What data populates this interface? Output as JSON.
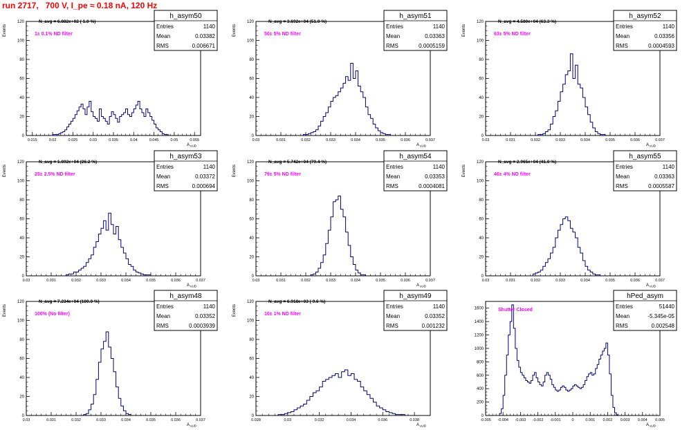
{
  "page_title": "run 2717,   700 V, I_pe ≈ 0.18 nA, 120 Hz",
  "colors": {
    "frame": "#000000",
    "histogram": "#000080",
    "annotation": "#ff00ff",
    "title": "#ff0000"
  },
  "stats_labels": {
    "entries": "Entries",
    "mean": "Mean",
    "rms": "RMS"
  },
  "chart_data": [
    {
      "type": "histogram",
      "name": "h_asym50",
      "ylabel": "Events",
      "xlabel": "A",
      "xlabel_sub": "uUD",
      "xlim": [
        0.0135,
        0.0565
      ],
      "ylim": [
        0,
        120
      ],
      "xticks": [
        "0.015",
        "0.02",
        "0.025",
        "0.03",
        "0.035",
        "0.04",
        "0.045",
        "0.05",
        "0.055"
      ],
      "xtick_values": [
        0.015,
        0.02,
        0.025,
        0.03,
        0.035,
        0.04,
        0.045,
        0.05,
        0.055
      ],
      "yticks": [
        0,
        20,
        40,
        60,
        80,
        100,
        120
      ],
      "navg": "N_avg = 6.882e+02 ( 1.0 %)",
      "filter": "1± 0.1% ND filter",
      "entries": "1140",
      "mean": "0.03382",
      "rms": "0.006671",
      "bins": {
        "x0": 0.0195,
        "width": 0.0005,
        "counts": [
          0,
          1,
          1,
          1,
          2,
          3,
          4,
          6,
          9,
          12,
          15,
          18,
          22,
          26,
          30,
          33,
          28,
          22,
          30,
          36,
          25,
          20,
          18,
          15,
          28,
          20,
          18,
          15,
          12,
          20,
          25,
          22,
          18,
          14,
          20,
          22,
          24,
          28,
          22,
          20,
          24,
          28,
          32,
          36,
          28,
          24,
          20,
          28,
          24,
          20,
          16,
          12,
          8,
          6,
          4,
          2,
          1,
          1
        ]
      }
    },
    {
      "type": "histogram",
      "name": "h_asym51",
      "ylabel": "Events",
      "xlabel": "A",
      "xlabel_sub": "uUD",
      "xlim": [
        0.03,
        0.037
      ],
      "ylim": [
        0,
        120
      ],
      "xticks": [
        "0.03",
        "0.031",
        "0.032",
        "0.033",
        "0.034",
        "0.035",
        "0.036",
        "0.037"
      ],
      "xtick_values": [
        0.03,
        0.031,
        0.032,
        0.033,
        0.034,
        0.035,
        0.036,
        0.037
      ],
      "yticks": [
        0,
        20,
        40,
        60,
        80,
        100,
        120
      ],
      "navg": "N_avg = 3.692e+04 (51.0 %)",
      "filter": "50± 5% ND filter",
      "entries": "1140",
      "mean": "0.03363",
      "rms": "0.0005159",
      "bins": {
        "x0": 0.0319,
        "width": 0.0001,
        "counts": [
          1,
          1,
          2,
          3,
          4,
          6,
          10,
          15,
          20,
          24,
          30,
          36,
          40,
          42,
          46,
          50,
          55,
          62,
          58,
          76,
          60,
          68,
          52,
          46,
          40,
          30,
          22,
          18,
          12,
          8,
          5,
          3,
          2,
          1,
          1
        ]
      }
    },
    {
      "type": "histogram",
      "name": "h_asym52",
      "ylabel": "Events",
      "xlabel": "A",
      "xlabel_sub": "uUD",
      "xlim": [
        0.03,
        0.037
      ],
      "ylim": [
        0,
        120
      ],
      "xticks": [
        "0.03",
        "0.031",
        "0.032",
        "0.033",
        "0.034",
        "0.035",
        "0.036",
        "0.037"
      ],
      "xtick_values": [
        0.03,
        0.031,
        0.032,
        0.033,
        0.034,
        0.035,
        0.036,
        0.037
      ],
      "yticks": [
        0,
        20,
        40,
        60,
        80,
        100,
        120
      ],
      "navg": "N_avg = 4.580e+04 (63.3 %)",
      "filter": "63± 5% ND filter",
      "entries": "1140",
      "mean": "0.03356",
      "rms": "0.0004593",
      "bins": {
        "x0": 0.0321,
        "width": 0.0001,
        "counts": [
          1,
          1,
          2,
          4,
          6,
          12,
          20,
          26,
          36,
          46,
          54,
          64,
          68,
          86,
          60,
          74,
          54,
          50,
          40,
          30,
          22,
          14,
          8,
          4,
          2,
          1,
          1
        ]
      }
    },
    {
      "type": "histogram",
      "name": "h_asym53",
      "ylabel": "Events",
      "xlabel": "A",
      "xlabel_sub": "uUD",
      "xlim": [
        0.03,
        0.037
      ],
      "ylim": [
        0,
        120
      ],
      "xticks": [
        "0.03",
        "0.031",
        "0.032",
        "0.033",
        "0.034",
        "0.035",
        "0.036",
        "0.037"
      ],
      "xtick_values": [
        0.03,
        0.031,
        0.032,
        0.033,
        0.034,
        0.035,
        0.036,
        0.037
      ],
      "yticks": [
        0,
        20,
        40,
        60,
        80,
        100,
        120
      ],
      "navg": "N_avg = 1.892e+04 (26.2 %)",
      "filter": "25± 2.5% ND filter",
      "entries": "1140",
      "mean": "0.03372",
      "rms": "0.000694",
      "bins": {
        "x0": 0.0316,
        "width": 0.0001,
        "counts": [
          1,
          2,
          2,
          4,
          4,
          6,
          8,
          10,
          14,
          18,
          22,
          30,
          36,
          44,
          50,
          58,
          48,
          66,
          54,
          44,
          52,
          38,
          30,
          24,
          18,
          12,
          10,
          6,
          4,
          3,
          2,
          1,
          1,
          1
        ]
      }
    },
    {
      "type": "histogram",
      "name": "h_asym54",
      "ylabel": "Events",
      "xlabel": "A",
      "xlabel_sub": "uUD",
      "xlim": [
        0.03,
        0.037
      ],
      "ylim": [
        0,
        120
      ],
      "xticks": [
        "0.03",
        "0.031",
        "0.032",
        "0.033",
        "0.034",
        "0.035",
        "0.036",
        "0.037"
      ],
      "xtick_values": [
        0.03,
        0.031,
        0.032,
        0.033,
        0.034,
        0.035,
        0.036,
        0.037
      ],
      "yticks": [
        0,
        20,
        40,
        60,
        80,
        100,
        120
      ],
      "navg": "N_avg = 5.742e+04 (79.4 %)",
      "filter": "79± 5% ND filter",
      "entries": "1140",
      "mean": "0.03353",
      "rms": "0.0004081",
      "bins": {
        "x0": 0.0322,
        "width": 0.0001,
        "counts": [
          1,
          2,
          4,
          8,
          14,
          22,
          34,
          48,
          62,
          78,
          80,
          84,
          70,
          62,
          46,
          32,
          20,
          12,
          6,
          3,
          1,
          1
        ]
      }
    },
    {
      "type": "histogram",
      "name": "h_asym55",
      "ylabel": "Events",
      "xlabel": "A",
      "xlabel_sub": "uUD",
      "xlim": [
        0.03,
        0.037
      ],
      "ylim": [
        0,
        120
      ],
      "xticks": [
        "0.03",
        "0.031",
        "0.032",
        "0.033",
        "0.034",
        "0.035",
        "0.036",
        "0.037"
      ],
      "xtick_values": [
        0.03,
        0.031,
        0.032,
        0.033,
        0.034,
        0.035,
        0.036,
        0.037
      ],
      "yticks": [
        0,
        20,
        40,
        60,
        80,
        100,
        120
      ],
      "navg": "N_avg = 2.965e+04 (41.0 %)",
      "filter": "40± 4% ND filter",
      "entries": "1140",
      "mean": "0.03363",
      "rms": "0.0005587",
      "bins": {
        "x0": 0.0319,
        "width": 0.0001,
        "counts": [
          2,
          3,
          4,
          6,
          10,
          14,
          18,
          24,
          30,
          40,
          48,
          54,
          60,
          62,
          58,
          50,
          46,
          40,
          30,
          24,
          16,
          10,
          6,
          4,
          2,
          1,
          1
        ]
      }
    },
    {
      "type": "histogram",
      "name": "h_asym48",
      "ylabel": "Events",
      "xlabel": "A",
      "xlabel_sub": "uUD",
      "xlim": [
        0.03,
        0.037
      ],
      "ylim": [
        0,
        120
      ],
      "xticks": [
        "0.03",
        "0.031",
        "0.032",
        "0.033",
        "0.034",
        "0.035",
        "0.036",
        "0.037"
      ],
      "xtick_values": [
        0.03,
        0.031,
        0.032,
        0.033,
        0.034,
        0.035,
        0.036,
        0.037
      ],
      "yticks": [
        0,
        20,
        40,
        60,
        80,
        100,
        120
      ],
      "navg": "N_avg = 7.234e+04 (100.0 %)",
      "filter": "100% (No filter)",
      "entries": "1140",
      "mean": "0.03352",
      "rms": "0.0003939",
      "bins": {
        "x0": 0.0323,
        "width": 0.0001,
        "counts": [
          1,
          2,
          6,
          12,
          22,
          38,
          56,
          70,
          78,
          88,
          72,
          60,
          46,
          30,
          18,
          10,
          5,
          2,
          1
        ]
      }
    },
    {
      "type": "histogram",
      "name": "h_asym49",
      "ylabel": "Events",
      "xlabel": "A",
      "xlabel_sub": "uUD",
      "xlim": [
        0.028,
        0.039
      ],
      "ylim": [
        0,
        120
      ],
      "xticks": [
        "0.028",
        "0.03",
        "0.032",
        "0.034",
        "0.036",
        "0.038"
      ],
      "xtick_values": [
        0.028,
        0.03,
        0.032,
        0.034,
        0.036,
        0.038
      ],
      "yticks": [
        0,
        20,
        40,
        60,
        80,
        100,
        120
      ],
      "navg": "N_avg = 6.918e+03 ( 9.6 %)",
      "filter": "10± 1% ND filter",
      "entries": "1140",
      "mean": "0.03352",
      "rms": "0.001232",
      "bins": {
        "x0": 0.0294,
        "width": 0.0002,
        "counts": [
          1,
          1,
          2,
          3,
          4,
          6,
          8,
          10,
          12,
          16,
          20,
          24,
          26,
          30,
          36,
          38,
          40,
          42,
          44,
          40,
          46,
          48,
          42,
          44,
          38,
          36,
          30,
          26,
          22,
          18,
          14,
          10,
          8,
          6,
          4,
          3,
          2,
          1,
          1,
          1
        ]
      }
    },
    {
      "type": "histogram",
      "name": "hPed_asym",
      "ylabel": "",
      "xlabel": "A",
      "xlabel_sub": "uUD",
      "xlim": [
        -0.005,
        0.005
      ],
      "ylim": [
        0,
        1700
      ],
      "xticks": [
        "-0.005",
        "-0.004",
        "-0.003",
        "-0.002",
        "-0.001",
        "0",
        "0.001",
        "0.002",
        "0.003",
        "0.004",
        "0.005"
      ],
      "xtick_values": [
        -0.005,
        -0.004,
        -0.003,
        -0.002,
        -0.001,
        0,
        0.001,
        0.002,
        0.003,
        0.004,
        0.005
      ],
      "yticks": [
        0,
        200,
        400,
        600,
        800,
        1000,
        1200,
        1400,
        1600
      ],
      "navg": "",
      "filter": "Shutter Closed",
      "entries": "51440",
      "mean": "-5.345e-05",
      "rms": "0.002548",
      "bins": {
        "x0": -0.0042,
        "width": 0.0001,
        "counts": [
          30,
          100,
          300,
          600,
          900,
          1200,
          1400,
          1650,
          1300,
          1000,
          820,
          720,
          640,
          600,
          560,
          520,
          500,
          480,
          520,
          600,
          640,
          560,
          500,
          460,
          440,
          500,
          600,
          640,
          600,
          540,
          460,
          420,
          380,
          360,
          380,
          420,
          440,
          420,
          380,
          360,
          380,
          400,
          440,
          460,
          440,
          420,
          400,
          420,
          460,
          520,
          580,
          620,
          640,
          600,
          620,
          700,
          760,
          840,
          900,
          960,
          1000,
          1080,
          900,
          620,
          300,
          120,
          40,
          10
        ]
      }
    }
  ]
}
